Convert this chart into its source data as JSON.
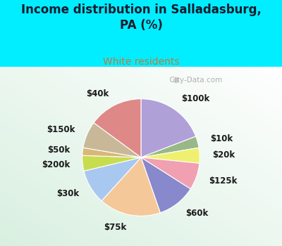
{
  "title": "Income distribution in Salladasburg,\nPA (%)",
  "subtitle": "White residents",
  "title_color": "#1a1a2e",
  "subtitle_color": "#c07840",
  "bg_cyan": "#00eeff",
  "bg_chart": "#d8f0e0",
  "watermark": "City-Data.com",
  "labels": [
    "$100k",
    "$10k",
    "$20k",
    "$125k",
    "$60k",
    "$75k",
    "$30k",
    "$200k",
    "$50k",
    "$150k",
    "$40k"
  ],
  "sizes": [
    18,
    3,
    4,
    7,
    10,
    16,
    9,
    4,
    2,
    7,
    14
  ],
  "colors": [
    "#b0a0d8",
    "#98b888",
    "#f0f070",
    "#f0a0b0",
    "#8888cc",
    "#f5c89a",
    "#a8c8f0",
    "#c8dc50",
    "#d8b878",
    "#c8b898",
    "#df8888"
  ],
  "startangle": 90,
  "labeldistance": 1.22,
  "label_fontsize": 8.5
}
